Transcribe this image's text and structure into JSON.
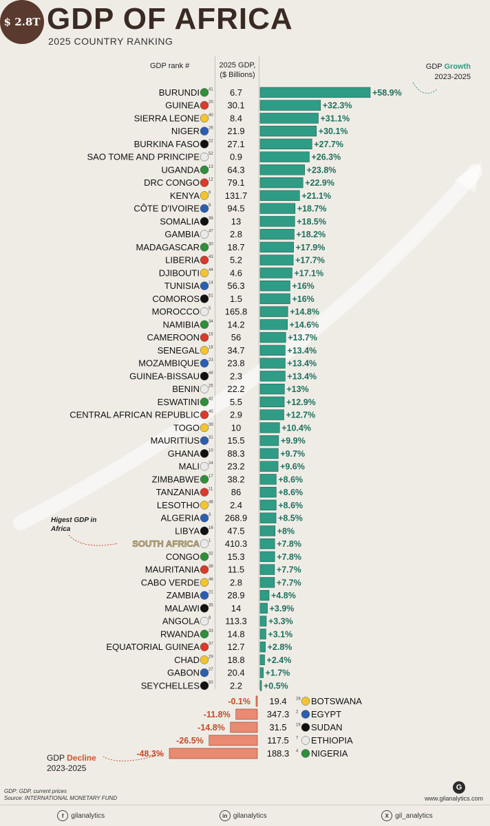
{
  "header": {
    "badge": "$ 2.8T",
    "title": "GDP OF AFRICA",
    "subtitle": "2025 COUNTRY RANKING",
    "col_rank": "GDP rank #",
    "col_gdp_line1": "2025 GDP,",
    "col_gdp_line2": "($ Billions)",
    "col_growth_prefix": "GDP ",
    "col_growth_word": "Growth",
    "col_growth_years": "2023-2025"
  },
  "decline_label": {
    "prefix": "GDP ",
    "word": "Decline",
    "years": "2023-2025"
  },
  "annotation": {
    "line1": "Higest GDP in",
    "line2": "Africa"
  },
  "source": {
    "line1": "GDP: GDP, current prices",
    "line2": "Source: INTERNATIONAL MONETARY FUND"
  },
  "footer": {
    "facebook": "gilanalytics",
    "linkedin": "gilanalytics",
    "x": "gil_analytics",
    "site": "www.gilanalytics.com"
  },
  "colors": {
    "growth_bar": "#2f9c86",
    "decline_bar": "#e98a72",
    "growth_text": "#1f6f5f",
    "decline_text": "#c44a2a",
    "highlight": "#c8b48a"
  },
  "chart_data": {
    "type": "bar",
    "xlabel": "GDP Growth 2023-2025",
    "ylabel": "",
    "growth": [
      {
        "country": "BURUNDI",
        "rank": 41,
        "gdp": "6.7",
        "growth": 58.9,
        "label": "+58.9%"
      },
      {
        "country": "GUINEA",
        "rank": 20,
        "gdp": "30.1",
        "growth": 32.3,
        "label": "+32.3%"
      },
      {
        "country": "SIERRA LEONE",
        "rank": 40,
        "gdp": "8.4",
        "growth": 31.1,
        "label": "+31.1%"
      },
      {
        "country": "NIGER",
        "rank": 26,
        "gdp": "21.9",
        "growth": 30.1,
        "label": "+30.1%"
      },
      {
        "country": "BURKINA FASO",
        "rank": 22,
        "gdp": "27.1",
        "growth": 27.7,
        "label": "+27.7%"
      },
      {
        "country": "SAO TOME AND PRINCIPE",
        "rank": 52,
        "gdp": "0.9",
        "growth": 26.3,
        "label": "+26.3%"
      },
      {
        "country": "UGANDA",
        "rank": 13,
        "gdp": "64.3",
        "growth": 23.8,
        "label": "+23.8%"
      },
      {
        "country": "DRC CONGO",
        "rank": 12,
        "gdp": "79.1",
        "growth": 22.9,
        "label": "+22.9%"
      },
      {
        "country": "KENYA",
        "rank": 6,
        "gdp": "131.7",
        "growth": 21.1,
        "label": "+21.1%"
      },
      {
        "country": "CÔTE D'IVOIRE",
        "rank": 9,
        "gdp": "94.5",
        "growth": 18.7,
        "label": "+18.7%"
      },
      {
        "country": "SOMALIA",
        "rank": 36,
        "gdp": "13",
        "growth": 18.5,
        "label": "+18.5%"
      },
      {
        "country": "GAMBIA",
        "rank": 47,
        "gdp": "2.8",
        "growth": 18.2,
        "label": "+18.2%"
      },
      {
        "country": "MADAGASCAR",
        "rank": 30,
        "gdp": "18.7",
        "growth": 17.9,
        "label": "+17.9%"
      },
      {
        "country": "LIBERIA",
        "rank": 43,
        "gdp": "5.2",
        "growth": 17.7,
        "label": "+17.7%"
      },
      {
        "country": "DJIBOUTI",
        "rank": 44,
        "gdp": "4.6",
        "growth": 17.1,
        "label": "+17.1%"
      },
      {
        "country": "TUNISIA",
        "rank": 14,
        "gdp": "56.3",
        "growth": 16,
        "label": "+16%"
      },
      {
        "country": "COMOROS",
        "rank": 51,
        "gdp": "1.5",
        "growth": 16,
        "label": "+16%"
      },
      {
        "country": "MOROCCO",
        "rank": 5,
        "gdp": "165.8",
        "growth": 14.8,
        "label": "+14.8%"
      },
      {
        "country": "NAMIBIA",
        "rank": 34,
        "gdp": "14.2",
        "growth": 14.6,
        "label": "+14.6%"
      },
      {
        "country": "CAMEROON",
        "rank": 15,
        "gdp": "56",
        "growth": 13.7,
        "label": "+13.7%"
      },
      {
        "country": "SENEGAL",
        "rank": 18,
        "gdp": "34.7",
        "growth": 13.4,
        "label": "+13.4%"
      },
      {
        "country": "MOZAMBIQUE",
        "rank": 23,
        "gdp": "23.8",
        "growth": 13.4,
        "label": "+13.4%"
      },
      {
        "country": "GUINEA-BISSAU",
        "rank": 49,
        "gdp": "2.3",
        "growth": 13.4,
        "label": "+13.4%"
      },
      {
        "country": "BENIN",
        "rank": 25,
        "gdp": "22.2",
        "growth": 13,
        "label": "+13%"
      },
      {
        "country": "ESWATINI",
        "rank": 42,
        "gdp": "5.5",
        "growth": 12.9,
        "label": "+12.9%"
      },
      {
        "country": "CENTRAL AFRICAN REPUBLIC",
        "rank": 45,
        "gdp": "2.9",
        "growth": 12.7,
        "label": "+12.7%"
      },
      {
        "country": "TOGO",
        "rank": 39,
        "gdp": "10",
        "growth": 10.4,
        "label": "+10.4%"
      },
      {
        "country": "MAURITIUS",
        "rank": 31,
        "gdp": "15.5",
        "growth": 9.9,
        "label": "+9.9%"
      },
      {
        "country": "GHANA",
        "rank": 10,
        "gdp": "88.3",
        "growth": 9.7,
        "label": "+9.7%"
      },
      {
        "country": "MALI",
        "rank": 24,
        "gdp": "23.2",
        "growth": 9.6,
        "label": "+9.6%"
      },
      {
        "country": "ZIMBABWE",
        "rank": 17,
        "gdp": "38.2",
        "growth": 8.6,
        "label": "+8.6%"
      },
      {
        "country": "TANZANIA",
        "rank": 11,
        "gdp": "86",
        "growth": 8.6,
        "label": "+8.6%"
      },
      {
        "country": "LESOTHO",
        "rank": 48,
        "gdp": "2.4",
        "growth": 8.6,
        "label": "+8.6%"
      },
      {
        "country": "ALGERIA",
        "rank": 3,
        "gdp": "268.9",
        "growth": 8.5,
        "label": "+8.5%"
      },
      {
        "country": "LIBYA",
        "rank": 16,
        "gdp": "47.5",
        "growth": 8,
        "label": "+8%"
      },
      {
        "country": "SOUTH AFRICA",
        "rank": 1,
        "gdp": "410.3",
        "growth": 7.8,
        "label": "+7.8%",
        "highlight": true
      },
      {
        "country": "CONGO",
        "rank": 32,
        "gdp": "15.3",
        "growth": 7.8,
        "label": "+7.8%"
      },
      {
        "country": "MAURITANIA",
        "rank": 38,
        "gdp": "11.5",
        "growth": 7.7,
        "label": "+7.7%"
      },
      {
        "country": "CABO VERDE",
        "rank": 46,
        "gdp": "2.8",
        "growth": 7.7,
        "label": "+7.7%"
      },
      {
        "country": "ZAMBIA",
        "rank": 21,
        "gdp": "28.9",
        "growth": 4.8,
        "label": "+4.8%"
      },
      {
        "country": "MALAWI",
        "rank": 35,
        "gdp": "14",
        "growth": 3.9,
        "label": "+3.9%"
      },
      {
        "country": "ANGOLA",
        "rank": 8,
        "gdp": "113.3",
        "growth": 3.3,
        "label": "+3.3%"
      },
      {
        "country": "RWANDA",
        "rank": 33,
        "gdp": "14.8",
        "growth": 3.1,
        "label": "+3.1%"
      },
      {
        "country": "EQUATORIAL GUINEA",
        "rank": 37,
        "gdp": "12.7",
        "growth": 2.8,
        "label": "+2.8%"
      },
      {
        "country": "CHAD",
        "rank": 29,
        "gdp": "18.8",
        "growth": 2.4,
        "label": "+2.4%"
      },
      {
        "country": "GABON",
        "rank": 27,
        "gdp": "20.4",
        "growth": 1.7,
        "label": "+1.7%"
      },
      {
        "country": "SEYCHELLES",
        "rank": 50,
        "gdp": "2.2",
        "growth": 0.5,
        "label": "+0.5%"
      }
    ],
    "decline": [
      {
        "country": "BOTSWANA",
        "rank": 28,
        "gdp": "19.4",
        "growth": -0.1,
        "label": "-0.1%"
      },
      {
        "country": "EGYPT",
        "rank": 2,
        "gdp": "347.3",
        "growth": -11.8,
        "label": "-11.8%"
      },
      {
        "country": "SUDAN",
        "rank": 19,
        "gdp": "31.5",
        "growth": -14.8,
        "label": "-14.8%"
      },
      {
        "country": "ETHIOPIA",
        "rank": 7,
        "gdp": "117.5",
        "growth": -26.5,
        "label": "-26.5%"
      },
      {
        "country": "NIGERIA",
        "rank": 4,
        "gdp": "188.3",
        "growth": -48.3,
        "label": "-48.3%"
      }
    ]
  }
}
